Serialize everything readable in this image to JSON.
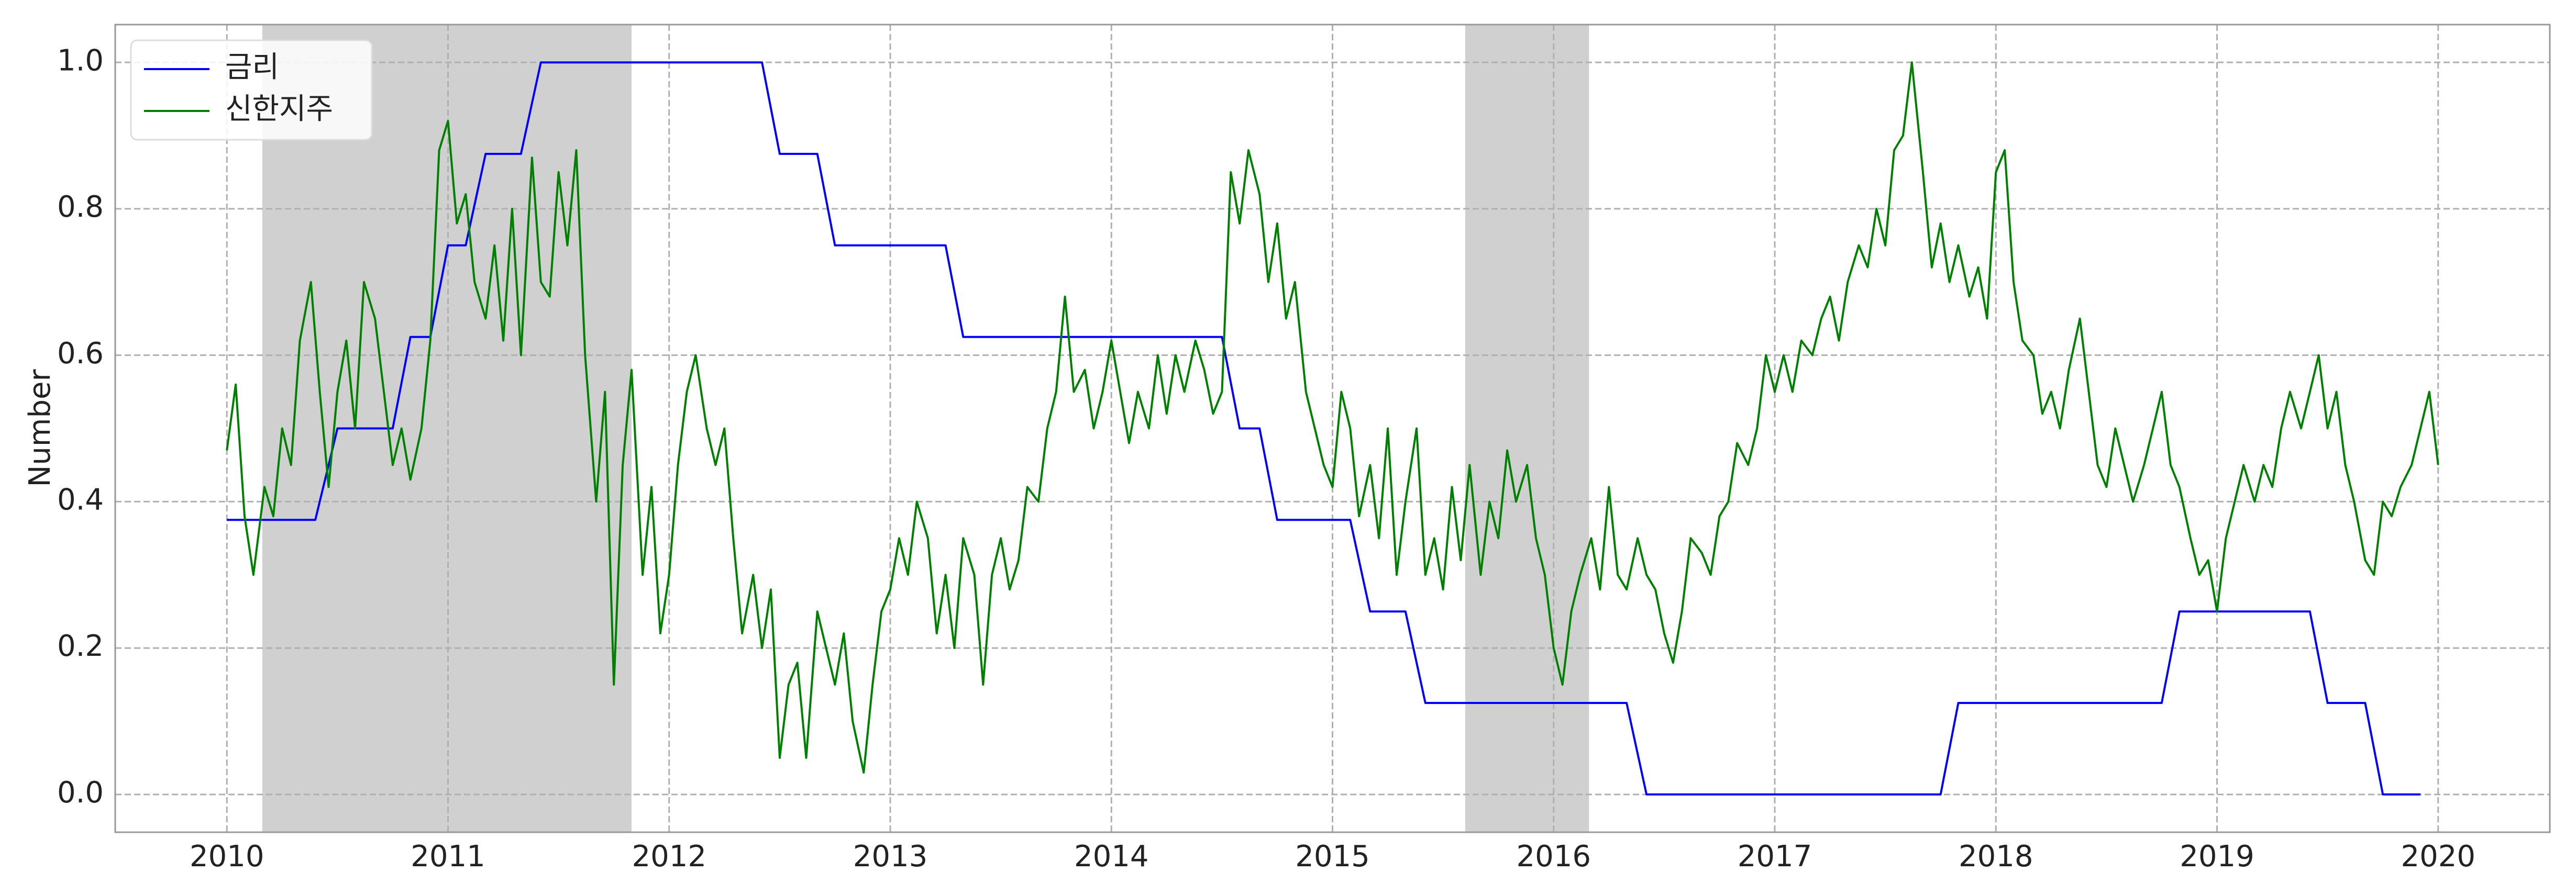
{
  "chart_data": {
    "type": "line",
    "ylabel": "Number",
    "xlim": [
      2009.495,
      2020.505
    ],
    "xticks": [
      2010,
      2011,
      2012,
      2013,
      2014,
      2015,
      2016,
      2017,
      2018,
      2019,
      2020
    ],
    "ylim": [
      -0.0516,
      1.0516
    ],
    "yticks": [
      {
        "value": 0,
        "label": "0.0"
      },
      0.2,
      0.4,
      0.6,
      0.8,
      {
        "value": 1,
        "label": "1.0"
      }
    ],
    "grid": true,
    "legend": "upper left",
    "shaded_spans": [
      [
        2010.16,
        2011.83
      ],
      [
        2015.6,
        2016.16
      ]
    ],
    "shade_color": "#d0d0d0",
    "series": [
      {
        "name": "금리",
        "color": "#0000ff",
        "x": [
          2010.0,
          2010.4,
          2010.5,
          2010.75,
          2010.83,
          2010.92,
          2011.0,
          2011.08,
          2011.17,
          2011.33,
          2011.42,
          2012.42,
          2012.5,
          2012.67,
          2012.75,
          2013.25,
          2013.33,
          2014.5,
          2014.58,
          2014.67,
          2014.75,
          2015.08,
          2015.17,
          2015.33,
          2015.42,
          2016.33,
          2016.42,
          2017.75,
          2017.83,
          2018.75,
          2018.83,
          2019.42,
          2019.5,
          2019.67,
          2019.75,
          2019.92
        ],
        "values": [
          0.375,
          0.375,
          0.5,
          0.5,
          0.625,
          0.625,
          0.75,
          0.75,
          0.875,
          0.875,
          1.0,
          1.0,
          0.875,
          0.875,
          0.75,
          0.75,
          0.625,
          0.625,
          0.5,
          0.5,
          0.375,
          0.375,
          0.25,
          0.25,
          0.125,
          0.125,
          0,
          0,
          0.125,
          0.125,
          0.25,
          0.25,
          0.125,
          0.125,
          0,
          0
        ]
      },
      {
        "name": "신한지주",
        "color": "#008000",
        "x": [
          2010.0,
          2010.04,
          2010.08,
          2010.12,
          2010.17,
          2010.21,
          2010.25,
          2010.29,
          2010.33,
          2010.38,
          2010.42,
          2010.46,
          2010.5,
          2010.54,
          2010.58,
          2010.62,
          2010.67,
          2010.71,
          2010.75,
          2010.79,
          2010.83,
          2010.88,
          2010.92,
          2010.96,
          2011.0,
          2011.04,
          2011.08,
          2011.12,
          2011.17,
          2011.21,
          2011.25,
          2011.29,
          2011.33,
          2011.38,
          2011.42,
          2011.46,
          2011.5,
          2011.54,
          2011.58,
          2011.62,
          2011.67,
          2011.71,
          2011.75,
          2011.79,
          2011.83,
          2011.88,
          2011.92,
          2011.96,
          2012.0,
          2012.04,
          2012.08,
          2012.12,
          2012.17,
          2012.21,
          2012.25,
          2012.29,
          2012.33,
          2012.38,
          2012.42,
          2012.46,
          2012.5,
          2012.54,
          2012.58,
          2012.62,
          2012.67,
          2012.71,
          2012.75,
          2012.79,
          2012.83,
          2012.88,
          2012.92,
          2012.96,
          2013.0,
          2013.04,
          2013.08,
          2013.12,
          2013.17,
          2013.21,
          2013.25,
          2013.29,
          2013.33,
          2013.38,
          2013.42,
          2013.46,
          2013.5,
          2013.54,
          2013.58,
          2013.62,
          2013.67,
          2013.71,
          2013.75,
          2013.79,
          2013.83,
          2013.88,
          2013.92,
          2013.96,
          2014.0,
          2014.04,
          2014.08,
          2014.12,
          2014.17,
          2014.21,
          2014.25,
          2014.29,
          2014.33,
          2014.38,
          2014.42,
          2014.46,
          2014.5,
          2014.54,
          2014.58,
          2014.62,
          2014.67,
          2014.71,
          2014.75,
          2014.79,
          2014.83,
          2014.88,
          2014.92,
          2014.96,
          2015.0,
          2015.04,
          2015.08,
          2015.12,
          2015.17,
          2015.21,
          2015.25,
          2015.29,
          2015.33,
          2015.38,
          2015.42,
          2015.46,
          2015.5,
          2015.54,
          2015.58,
          2015.62,
          2015.67,
          2015.71,
          2015.75,
          2015.79,
          2015.83,
          2015.88,
          2015.92,
          2015.96,
          2016.0,
          2016.04,
          2016.08,
          2016.12,
          2016.17,
          2016.21,
          2016.25,
          2016.29,
          2016.33,
          2016.38,
          2016.42,
          2016.46,
          2016.5,
          2016.54,
          2016.58,
          2016.62,
          2016.67,
          2016.71,
          2016.75,
          2016.79,
          2016.83,
          2016.88,
          2016.92,
          2016.96,
          2017.0,
          2017.04,
          2017.08,
          2017.12,
          2017.17,
          2017.21,
          2017.25,
          2017.29,
          2017.33,
          2017.38,
          2017.42,
          2017.46,
          2017.5,
          2017.54,
          2017.58,
          2017.62,
          2017.67,
          2017.71,
          2017.75,
          2017.79,
          2017.83,
          2017.88,
          2017.92,
          2017.96,
          2018.0,
          2018.04,
          2018.08,
          2018.12,
          2018.17,
          2018.21,
          2018.25,
          2018.29,
          2018.33,
          2018.38,
          2018.42,
          2018.46,
          2018.5,
          2018.54,
          2018.58,
          2018.62,
          2018.67,
          2018.71,
          2018.75,
          2018.79,
          2018.83,
          2018.88,
          2018.92,
          2018.96,
          2019.0,
          2019.04,
          2019.08,
          2019.12,
          2019.17,
          2019.21,
          2019.25,
          2019.29,
          2019.33,
          2019.38,
          2019.42,
          2019.46,
          2019.5,
          2019.54,
          2019.58,
          2019.62,
          2019.67,
          2019.71,
          2019.75,
          2019.79,
          2019.83,
          2019.88,
          2019.92,
          2019.96,
          2020.0
        ],
        "values": [
          0.47,
          0.56,
          0.38,
          0.3,
          0.42,
          0.38,
          0.5,
          0.45,
          0.62,
          0.7,
          0.55,
          0.42,
          0.55,
          0.62,
          0.5,
          0.7,
          0.65,
          0.55,
          0.45,
          0.5,
          0.43,
          0.5,
          0.62,
          0.88,
          0.92,
          0.78,
          0.82,
          0.7,
          0.65,
          0.75,
          0.62,
          0.8,
          0.6,
          0.87,
          0.7,
          0.68,
          0.85,
          0.75,
          0.88,
          0.6,
          0.4,
          0.55,
          0.15,
          0.45,
          0.58,
          0.3,
          0.42,
          0.22,
          0.3,
          0.45,
          0.55,
          0.6,
          0.5,
          0.45,
          0.5,
          0.35,
          0.22,
          0.3,
          0.2,
          0.28,
          0.05,
          0.15,
          0.18,
          0.05,
          0.25,
          0.2,
          0.15,
          0.22,
          0.1,
          0.03,
          0.15,
          0.25,
          0.28,
          0.35,
          0.3,
          0.4,
          0.35,
          0.22,
          0.3,
          0.2,
          0.35,
          0.3,
          0.15,
          0.3,
          0.35,
          0.28,
          0.32,
          0.42,
          0.4,
          0.5,
          0.55,
          0.68,
          0.55,
          0.58,
          0.5,
          0.55,
          0.62,
          0.55,
          0.48,
          0.55,
          0.5,
          0.6,
          0.52,
          0.6,
          0.55,
          0.62,
          0.58,
          0.52,
          0.55,
          0.85,
          0.78,
          0.88,
          0.82,
          0.7,
          0.78,
          0.65,
          0.7,
          0.55,
          0.5,
          0.45,
          0.42,
          0.55,
          0.5,
          0.38,
          0.45,
          0.35,
          0.5,
          0.3,
          0.4,
          0.5,
          0.3,
          0.35,
          0.28,
          0.42,
          0.32,
          0.45,
          0.3,
          0.4,
          0.35,
          0.47,
          0.4,
          0.45,
          0.35,
          0.3,
          0.2,
          0.15,
          0.25,
          0.3,
          0.35,
          0.28,
          0.42,
          0.3,
          0.28,
          0.35,
          0.3,
          0.28,
          0.22,
          0.18,
          0.25,
          0.35,
          0.33,
          0.3,
          0.38,
          0.4,
          0.48,
          0.45,
          0.5,
          0.6,
          0.55,
          0.6,
          0.55,
          0.62,
          0.6,
          0.65,
          0.68,
          0.62,
          0.7,
          0.75,
          0.72,
          0.8,
          0.75,
          0.88,
          0.9,
          1.0,
          0.85,
          0.72,
          0.78,
          0.7,
          0.75,
          0.68,
          0.72,
          0.65,
          0.85,
          0.88,
          0.7,
          0.62,
          0.6,
          0.52,
          0.55,
          0.5,
          0.58,
          0.65,
          0.55,
          0.45,
          0.42,
          0.5,
          0.45,
          0.4,
          0.45,
          0.5,
          0.55,
          0.45,
          0.42,
          0.35,
          0.3,
          0.32,
          0.25,
          0.35,
          0.4,
          0.45,
          0.4,
          0.45,
          0.42,
          0.5,
          0.55,
          0.5,
          0.55,
          0.6,
          0.5,
          0.55,
          0.45,
          0.4,
          0.32,
          0.3,
          0.4,
          0.38,
          0.42,
          0.45,
          0.5,
          0.55,
          0.45
        ]
      }
    ]
  }
}
